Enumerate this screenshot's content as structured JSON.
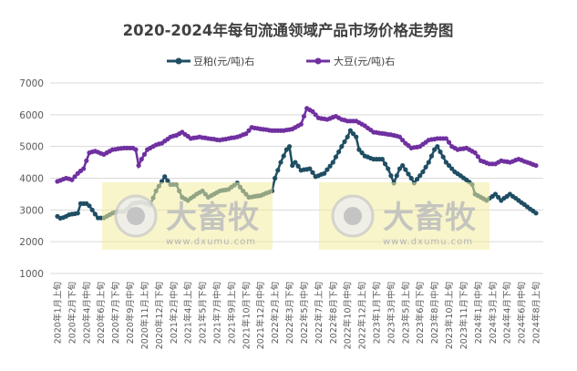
{
  "chart_data": {
    "type": "line",
    "title": "2020-2024年每旬流通领域产品市场价格走势图",
    "xlabel": "",
    "ylabel": "",
    "ylim": [
      1000,
      7000
    ],
    "yticks": [
      1000,
      2000,
      3000,
      4000,
      5000,
      6000,
      7000
    ],
    "grid": true,
    "legend": "top",
    "x_tick_every": 5,
    "x_tick_labels": [
      "2020年1月上旬",
      "2020年2月下旬",
      "2020年4月中旬",
      "2020年6月上旬",
      "2020年7月下旬",
      "2020年9月中旬",
      "2020年11月上旬",
      "2020年12月下旬",
      "2021年2月中旬",
      "2021年4月上旬",
      "2021年5月下旬",
      "2021年7月中旬",
      "2021年9月上旬",
      "2021年10月下旬",
      "2021年12月中旬",
      "2022年2月上旬",
      "2022年3月下旬",
      "2022年5月中旬",
      "2022年7月上旬",
      "2022年8月下旬",
      "2022年10月中旬",
      "2022年12月上旬",
      "2023年1月下旬",
      "2023年3月中旬",
      "2023年5月上旬",
      "2023年6月下旬",
      "2023年8月中旬",
      "2023年10月上旬",
      "2023年11月下旬",
      "2024年1月中旬",
      "2024年3月上旬",
      "2024年4月下旬",
      "2024年6月中旬",
      "2024年8月上旬"
    ],
    "series": [
      {
        "name": "豆粕(元/吨)右",
        "color": "#1f4e63",
        "values": [
          2800,
          2740,
          2760,
          2800,
          2850,
          2870,
          2880,
          2900,
          3200,
          3200,
          3200,
          3130,
          3000,
          2870,
          2750,
          2750,
          2750,
          2800,
          2850,
          2900,
          2930,
          2950,
          2950,
          2950,
          3030,
          3120,
          3200,
          3220,
          3230,
          3250,
          3220,
          3180,
          3150,
          3380,
          3600,
          3750,
          3900,
          4050,
          3920,
          3800,
          3800,
          3800,
          3600,
          3400,
          3350,
          3300,
          3370,
          3430,
          3500,
          3550,
          3600,
          3500,
          3400,
          3450,
          3500,
          3550,
          3600,
          3620,
          3630,
          3650,
          3720,
          3780,
          3850,
          3720,
          3600,
          3500,
          3400,
          3410,
          3430,
          3440,
          3450,
          3490,
          3530,
          3560,
          3600,
          4000,
          4250,
          4500,
          4700,
          4900,
          5000,
          4400,
          4500,
          4380,
          4250,
          4270,
          4280,
          4300,
          4180,
          4050,
          4080,
          4120,
          4150,
          4270,
          4380,
          4500,
          4670,
          4830,
          5000,
          5150,
          5300,
          5500,
          5400,
          5300,
          4900,
          4800,
          4700,
          4670,
          4630,
          4600,
          4600,
          4600,
          4600,
          4450,
          4300,
          4080,
          3850,
          4080,
          4300,
          4400,
          4270,
          4130,
          4000,
          3850,
          3970,
          4080,
          4200,
          4350,
          4500,
          4700,
          4900,
          5000,
          4830,
          4670,
          4500,
          4400,
          4300,
          4200,
          4140,
          4080,
          4010,
          3950,
          3880,
          3800,
          3500,
          3450,
          3400,
          3350,
          3300,
          3370,
          3430,
          3500,
          3400,
          3300,
          3370,
          3430,
          3500,
          3430,
          3370,
          3300,
          3230,
          3170,
          3100,
          3030,
          2970,
          2900
        ]
      },
      {
        "name": "大豆(元/吨)右",
        "color": "#7030a0",
        "values": [
          3900,
          3930,
          3970,
          4000,
          3980,
          3950,
          4050,
          4150,
          4230,
          4300,
          4550,
          4800,
          4830,
          4850,
          4820,
          4780,
          4750,
          4800,
          4850,
          4900,
          4910,
          4930,
          4940,
          4950,
          4950,
          4950,
          4950,
          4900,
          4400,
          4600,
          4750,
          4900,
          4950,
          5000,
          5050,
          5080,
          5100,
          5170,
          5230,
          5300,
          5330,
          5350,
          5400,
          5450,
          5380,
          5320,
          5250,
          5270,
          5280,
          5300,
          5280,
          5270,
          5250,
          5240,
          5230,
          5210,
          5200,
          5220,
          5230,
          5250,
          5270,
          5280,
          5300,
          5330,
          5370,
          5400,
          5500,
          5600,
          5580,
          5570,
          5550,
          5540,
          5530,
          5510,
          5500,
          5500,
          5500,
          5500,
          5500,
          5520,
          5530,
          5550,
          5600,
          5650,
          5700,
          5950,
          6200,
          6150,
          6100,
          6000,
          5900,
          5880,
          5870,
          5850,
          5880,
          5920,
          5950,
          5900,
          5850,
          5830,
          5800,
          5800,
          5800,
          5800,
          5750,
          5700,
          5650,
          5580,
          5520,
          5450,
          5440,
          5420,
          5410,
          5400,
          5380,
          5370,
          5350,
          5330,
          5300,
          5200,
          5100,
          5030,
          4950,
          4970,
          4980,
          5000,
          5070,
          5130,
          5200,
          5220,
          5230,
          5250,
          5250,
          5250,
          5250,
          5130,
          5000,
          4950,
          4900,
          4920,
          4930,
          4950,
          4900,
          4850,
          4800,
          4680,
          4550,
          4520,
          4480,
          4450,
          4450,
          4450,
          4500,
          4550,
          4530,
          4520,
          4500,
          4530,
          4570,
          4600,
          4570,
          4530,
          4500,
          4470,
          4430,
          4400
        ]
      }
    ]
  },
  "watermark": {
    "brand": "大畜牧",
    "url": "www.dxumu.com"
  }
}
